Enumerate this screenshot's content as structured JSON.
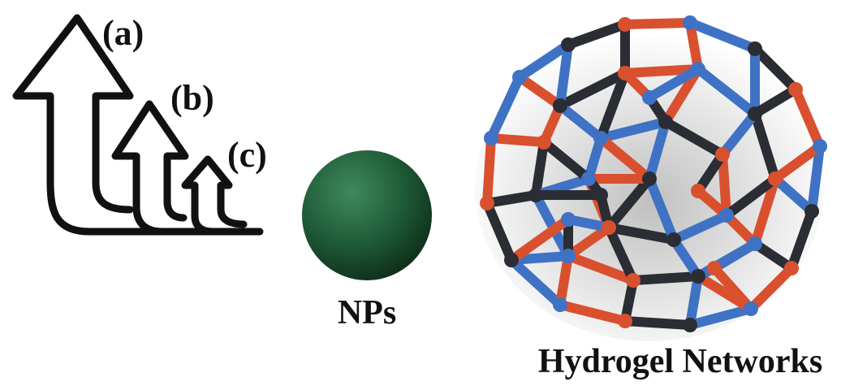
{
  "arrows": [
    {
      "label": "(a)"
    },
    {
      "label": "(b)"
    },
    {
      "label": "(c)"
    }
  ],
  "nanoparticle": {
    "label": "NPs",
    "color": "#1f5a36"
  },
  "network": {
    "label": "Hydrogel Networks",
    "colors": {
      "blue": "#3f72c4",
      "red": "#d9502f",
      "dark": "#2a2d33"
    }
  }
}
